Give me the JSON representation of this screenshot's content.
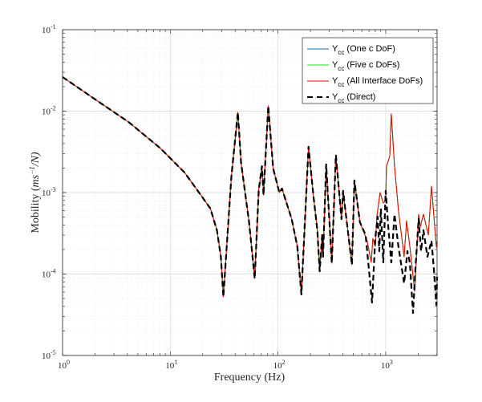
{
  "chart_data": {
    "type": "line",
    "xscale": "log",
    "yscale": "log",
    "xlim": [
      1,
      3000
    ],
    "ylim": [
      1e-05,
      0.1
    ],
    "xlabel": "Frequency (Hz)",
    "ylabel_text": "Mobility (",
    "ylabel_math": "ms",
    "ylabel_exp": "−1",
    "ylabel_tail": "/N)",
    "grid": "major and minor",
    "legend_position": "top-right",
    "x_ticks": [
      {
        "base": "10",
        "exp": "0",
        "value": 1
      },
      {
        "base": "10",
        "exp": "1",
        "value": 10
      },
      {
        "base": "10",
        "exp": "2",
        "value": 100
      },
      {
        "base": "10",
        "exp": "3",
        "value": 1000
      }
    ],
    "y_ticks": [
      {
        "base": "10",
        "exp": "-5",
        "value": 1e-05
      },
      {
        "base": "10",
        "exp": "-4",
        "value": 0.0001
      },
      {
        "base": "10",
        "exp": "-3",
        "value": 0.001
      },
      {
        "base": "10",
        "exp": "-2",
        "value": 0.01
      },
      {
        "base": "10",
        "exp": "-1",
        "value": 0.1
      }
    ],
    "common_low_freq": [
      [
        1,
        0.0262
      ],
      [
        2.06,
        0.0136
      ],
      [
        4.09,
        0.00736
      ],
      [
        8.13,
        0.00348
      ],
      [
        13.6,
        0.00176
      ],
      [
        19.2,
        0.000933
      ],
      [
        23.6,
        0.000635
      ],
      [
        27.1,
        0.000344
      ],
      [
        29.5,
        0.000163
      ],
      [
        31.1,
        5.24e-05
      ],
      [
        36.9,
        0.00157
      ],
      [
        42.4,
        0.00966
      ],
      [
        45.4,
        0.00232
      ],
      [
        53.9,
        0.000431
      ],
      [
        60.8,
        8.83e-05
      ],
      [
        66.2,
        0.00107
      ],
      [
        71.0,
        0.00211
      ],
      [
        73.4,
        0.000933
      ],
      [
        81.3,
        0.0116
      ],
      [
        90.2,
        0.00198
      ],
      [
        103,
        0.001
      ],
      [
        109,
        0.00112
      ],
      [
        134,
        0.000473
      ],
      [
        151,
        0.000219
      ],
      [
        165,
        5.61e-05
      ],
      [
        192,
        0.00365
      ],
      [
        213,
        0.000933
      ],
      [
        232,
        0.000344
      ],
      [
        244,
        0.000108
      ],
      [
        257,
        0.000301
      ],
      [
        262,
        0.000163
      ],
      [
        280,
        0.00221
      ],
      [
        316,
        0.000136
      ],
      [
        345,
        0.0029
      ],
      [
        389,
        0.000473
      ],
      [
        402,
        0.00105
      ],
      [
        438,
        0.000404
      ],
      [
        486,
        0.00013
      ],
      [
        512,
        0.00141
      ],
      [
        577,
        0.000431
      ]
    ],
    "series": [
      {
        "name_main": "Y",
        "name_sub": "cc",
        "name_rest": " (One c DoF)",
        "color": "#0072BD",
        "style": "solid",
        "values": "same as All Interface DoFs"
      },
      {
        "name_main": "Y",
        "name_sub": "cc",
        "name_rest": " (Five c DoFs)",
        "color": "#00FF00",
        "style": "solid",
        "values": "same as All Interface DoFs"
      },
      {
        "name_main": "Y",
        "name_sub": "cc",
        "name_rest": " (All Interface DoFs)",
        "color": "#FF0000",
        "style": "solid",
        "points_after_common": [
          [
            673,
            0.000256
          ],
          [
            734,
            0.000139
          ],
          [
            760,
            0.000274
          ],
          [
            800,
            0.000219
          ],
          [
            828,
            0.000506
          ],
          [
            887,
            0.001
          ],
          [
            950,
            0.000745
          ],
          [
            1000,
            0.000797
          ],
          [
            1017,
            0.00211
          ],
          [
            1089,
            0.00277
          ],
          [
            1128,
            0.00925
          ],
          [
            1208,
            0.00211
          ],
          [
            1316,
            0.000593
          ],
          [
            1484,
            0.000163
          ],
          [
            1564,
            0.000452
          ],
          [
            1674,
            0.000219
          ],
          [
            1858,
            6.14e-05
          ],
          [
            2024,
            0.000542
          ],
          [
            2094,
            0.000377
          ],
          [
            2243,
            0.000542
          ],
          [
            2488,
            0.000301
          ],
          [
            2663,
            0.0012
          ],
          [
            2952,
            0.000214
          ],
          [
            3000,
            0.000256
          ]
        ]
      },
      {
        "name_main": "Y",
        "name_sub": "cc",
        "name_rest": " (Direct)",
        "color": "#000000",
        "style": "dashed",
        "points_after_common": [
          [
            651,
            0.000301
          ],
          [
            747,
            4.47e-05
          ],
          [
            800,
            0.000274
          ],
          [
            842,
            0.000506
          ],
          [
            871,
            0.000191
          ],
          [
            902,
            0.000635
          ],
          [
            950,
            0.000139
          ],
          [
            1000,
            0.00105
          ],
          [
            1052,
            0.000404
          ],
          [
            1128,
            0.000139
          ],
          [
            1208,
            0.000542
          ],
          [
            1316,
            0.000214
          ],
          [
            1484,
            7.71e-05
          ],
          [
            1590,
            0.000191
          ],
          [
            1674,
            0.000139
          ],
          [
            1794,
            3.33e-05
          ],
          [
            1890,
            0.000121
          ],
          [
            2024,
            0.000473
          ],
          [
            2130,
            0.000191
          ],
          [
            2243,
            0.000344
          ],
          [
            2443,
            0.000163
          ],
          [
            2663,
            0.000256
          ],
          [
            2806,
            0.000111
          ],
          [
            2952,
            4.18e-05
          ],
          [
            3000,
            9.25e-05
          ]
        ]
      }
    ]
  }
}
